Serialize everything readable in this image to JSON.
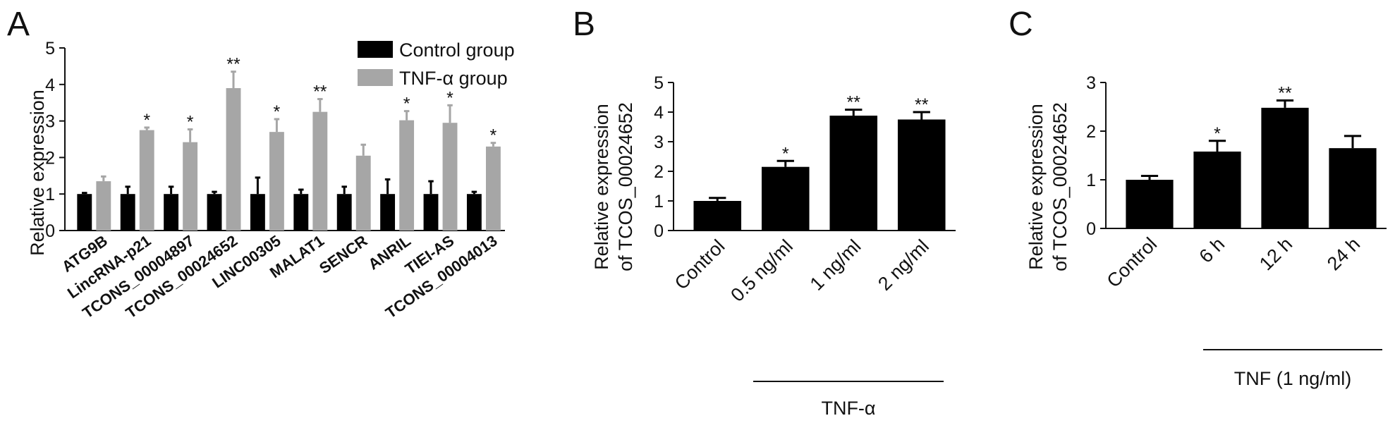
{
  "colors": {
    "control": "#000000",
    "tnf": "#a6a6a6",
    "axis": "#111111"
  },
  "chart_data": [
    {
      "panel": "A",
      "type": "bar",
      "ylabel": "Relative expression",
      "ylim": [
        0,
        5
      ],
      "yticks": [
        "0",
        "1",
        "2",
        "3",
        "4",
        "5"
      ],
      "legend_placement": "top-right",
      "categories": [
        "ATG9B",
        "LincRNA-p21",
        "TCONS_00004897",
        "TCONS_00024652",
        "LINC00305",
        "MALAT1",
        "SENCR",
        "ANRIL",
        "TIEI-AS",
        "TCONS_00004013"
      ],
      "series": [
        {
          "name": "Control group",
          "values": [
            1.0,
            1.0,
            1.0,
            1.0,
            1.0,
            1.0,
            1.0,
            1.0,
            1.0,
            1.0
          ],
          "errors": [
            0.03,
            0.2,
            0.2,
            0.06,
            0.45,
            0.12,
            0.2,
            0.4,
            0.35,
            0.06
          ]
        },
        {
          "name": "TNF-α group",
          "values": [
            1.35,
            2.75,
            2.42,
            3.9,
            2.7,
            3.25,
            2.05,
            3.02,
            2.95,
            2.3
          ],
          "errors": [
            0.13,
            0.07,
            0.35,
            0.45,
            0.35,
            0.35,
            0.3,
            0.25,
            0.48,
            0.1
          ]
        }
      ],
      "significance": [
        "",
        "*",
        "*",
        "**",
        "*",
        "**",
        "",
        "*",
        "*",
        "*"
      ]
    },
    {
      "panel": "B",
      "type": "bar",
      "ylabel_lines": [
        "Relative expression",
        "of TCOS_00024652"
      ],
      "ylim": [
        0,
        5
      ],
      "yticks": [
        "0",
        "1",
        "2",
        "3",
        "4",
        "5"
      ],
      "categories": [
        "Control",
        "0.5 ng/ml",
        "1 ng/ml",
        "2 ng/ml"
      ],
      "values": [
        1.0,
        2.15,
        3.88,
        3.75
      ],
      "errors": [
        0.1,
        0.2,
        0.2,
        0.25
      ],
      "significance": [
        "",
        "*",
        "**",
        "**"
      ],
      "group_label": "TNF-α"
    },
    {
      "panel": "C",
      "type": "bar",
      "ylabel_lines": [
        "Relative expression",
        "of TCOS_00024652"
      ],
      "ylim": [
        0,
        3
      ],
      "yticks": [
        "0",
        "1",
        "2",
        "3"
      ],
      "categories": [
        "Control",
        "6 h",
        "12 h",
        "24 h"
      ],
      "values": [
        1.0,
        1.58,
        2.48,
        1.65
      ],
      "errors": [
        0.08,
        0.22,
        0.15,
        0.25
      ],
      "significance": [
        "",
        "*",
        "**",
        ""
      ],
      "group_label": "TNF (1 ng/ml)"
    }
  ]
}
